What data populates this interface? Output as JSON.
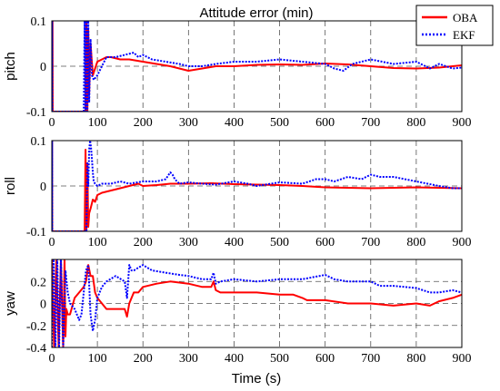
{
  "chart_data": [
    {
      "type": "line",
      "title": "Attitude error (min)",
      "ylabel": "pitch",
      "xlabel": "",
      "xlim": [
        0,
        900
      ],
      "ylim": [
        -0.1,
        0.1
      ],
      "x_ticks": [
        "0",
        "100",
        "200",
        "300",
        "400",
        "500",
        "600",
        "700",
        "800",
        "900"
      ],
      "y_ticks": [
        "-0.1",
        "0",
        "0.1"
      ],
      "y_tick_values": [
        -0.1,
        0,
        0.1
      ],
      "grid": "dashed",
      "legend": "top-right",
      "series": [
        {
          "name": "OBA",
          "color": "#ff0000",
          "x": [
            0,
            0.5,
            1,
            1.5,
            2,
            74,
            76,
            78,
            80,
            82,
            85,
            90,
            100,
            110,
            120,
            130,
            150,
            170,
            200,
            230,
            260,
            280,
            300,
            330,
            360,
            400,
            450,
            500,
            550,
            600,
            650,
            700,
            750,
            800,
            850,
            900
          ],
          "y": [
            -0.1,
            0.1,
            -0.1,
            0.1,
            -0.1,
            -0.1,
            0.1,
            -0.1,
            0.08,
            -0.06,
            0.05,
            -0.02,
            0.01,
            0.015,
            0.02,
            0.02,
            0.015,
            0.015,
            0.01,
            0.005,
            0.0,
            -0.005,
            -0.01,
            -0.005,
            0.0,
            0.0,
            0.003,
            0.004,
            0.003,
            0.006,
            0.004,
            0.0,
            -0.004,
            -0.005,
            -0.003,
            0.002
          ]
        },
        {
          "name": "EKF",
          "color": "#0000ff",
          "x": [
            0,
            0.5,
            1,
            70,
            72,
            74,
            76,
            78,
            80,
            82,
            85,
            88,
            92,
            100,
            110,
            120,
            140,
            160,
            180,
            190,
            200,
            220,
            250,
            280,
            300,
            330,
            360,
            400,
            450,
            500,
            550,
            600,
            620,
            640,
            660,
            700,
            750,
            800,
            830,
            850,
            880,
            900
          ],
          "y": [
            -0.1,
            0.1,
            -0.1,
            -0.1,
            0.1,
            -0.1,
            0.1,
            -0.1,
            0.1,
            -0.08,
            0.06,
            -0.02,
            -0.03,
            -0.02,
            0.0,
            0.02,
            0.02,
            0.025,
            0.03,
            0.02,
            0.025,
            0.015,
            0.01,
            0.005,
            0.0,
            0.0,
            0.005,
            0.01,
            0.01,
            0.015,
            0.01,
            0.005,
            -0.005,
            -0.01,
            0.005,
            0.015,
            0.005,
            0.01,
            -0.005,
            0.005,
            -0.005,
            -0.003
          ]
        }
      ]
    },
    {
      "type": "line",
      "title": "",
      "ylabel": "roll",
      "xlabel": "",
      "xlim": [
        0,
        900
      ],
      "ylim": [
        -0.1,
        0.1
      ],
      "x_ticks": [
        "0",
        "100",
        "200",
        "300",
        "400",
        "500",
        "600",
        "700",
        "800",
        "900"
      ],
      "y_ticks": [
        "-0.1",
        "0",
        "0.1"
      ],
      "y_tick_values": [
        -0.1,
        0,
        0.1
      ],
      "grid": "dashed",
      "series": [
        {
          "name": "OBA",
          "color": "#ff0000",
          "x": [
            0,
            0.5,
            1,
            72,
            74,
            76,
            78,
            80,
            82,
            85,
            90,
            95,
            100,
            110,
            130,
            150,
            170,
            190,
            200,
            230,
            260,
            300,
            350,
            400,
            450,
            500,
            550,
            600,
            650,
            700,
            750,
            800,
            850,
            900
          ],
          "y": [
            -0.1,
            0.1,
            -0.1,
            -0.1,
            0.08,
            -0.1,
            0.05,
            -0.09,
            -0.06,
            -0.05,
            -0.03,
            -0.035,
            -0.02,
            -0.015,
            -0.01,
            -0.005,
            0.0,
            0.005,
            0.0,
            0.002,
            0.005,
            0.005,
            0.006,
            0.004,
            0.003,
            0.002,
            0.0,
            -0.003,
            -0.004,
            -0.005,
            -0.004,
            -0.003,
            -0.004,
            -0.005
          ]
        },
        {
          "name": "EKF",
          "color": "#0000ff",
          "x": [
            0,
            0.5,
            1,
            76,
            78,
            80,
            82,
            84,
            86,
            88,
            90,
            92,
            95,
            100,
            110,
            130,
            150,
            170,
            200,
            230,
            250,
            260,
            265,
            270,
            280,
            300,
            330,
            360,
            400,
            430,
            450,
            500,
            550,
            580,
            600,
            620,
            650,
            680,
            700,
            720,
            750,
            800,
            850,
            880,
            900
          ],
          "y": [
            -0.1,
            0.1,
            -0.1,
            -0.1,
            0.05,
            0.0,
            0.08,
            0.1,
            0.085,
            0.06,
            0.03,
            0.01,
            0.005,
            0.0,
            0.005,
            0.005,
            0.01,
            0.005,
            0.01,
            0.01,
            0.015,
            0.03,
            0.025,
            0.015,
            0.005,
            0.008,
            0.005,
            0.003,
            0.01,
            0.005,
            0.0,
            0.008,
            0.005,
            0.015,
            0.015,
            0.01,
            0.02,
            0.015,
            0.025,
            0.02,
            0.02,
            0.01,
            0.0,
            -0.005,
            -0.005
          ]
        }
      ]
    },
    {
      "type": "line",
      "title": "",
      "ylabel": "yaw",
      "xlabel": "Time (s)",
      "xlim": [
        0,
        900
      ],
      "ylim": [
        -0.4,
        0.4
      ],
      "x_ticks": [
        "0",
        "100",
        "200",
        "300",
        "400",
        "500",
        "600",
        "700",
        "800",
        "900"
      ],
      "y_ticks": [
        "-0.4",
        "-0.2",
        "0",
        "0.2"
      ],
      "y_tick_values": [
        -0.4,
        -0.2,
        0,
        0.2
      ],
      "grid": "dashed",
      "series": [
        {
          "name": "OBA",
          "color": "#ff0000",
          "x": [
            0,
            5,
            10,
            15,
            20,
            25,
            28,
            30,
            32,
            35,
            40,
            50,
            60,
            70,
            75,
            80,
            85,
            90,
            95,
            100,
            110,
            120,
            140,
            160,
            165,
            170,
            175,
            180,
            190,
            200,
            230,
            260,
            300,
            330,
            350,
            355,
            360,
            370,
            400,
            450,
            500,
            530,
            550,
            560,
            600,
            650,
            700,
            750,
            800,
            830,
            850,
            880,
            900
          ],
          "y": [
            0.4,
            -0.4,
            0.4,
            -0.4,
            0.4,
            -0.4,
            0.4,
            -0.3,
            -0.05,
            -0.1,
            -0.1,
            0.05,
            0.1,
            0.15,
            0.2,
            0.35,
            0.25,
            0.25,
            0.1,
            0.05,
            0.0,
            -0.05,
            -0.05,
            -0.05,
            -0.12,
            0.0,
            0.05,
            0.1,
            0.1,
            0.15,
            0.18,
            0.2,
            0.18,
            0.15,
            0.15,
            0.2,
            0.12,
            0.1,
            0.1,
            0.1,
            0.08,
            0.08,
            0.05,
            0.03,
            0.03,
            0.0,
            0.0,
            -0.02,
            0.0,
            -0.02,
            0.02,
            0.05,
            0.08
          ]
        },
        {
          "name": "EKF",
          "color": "#0000ff",
          "x": [
            0,
            4,
            8,
            12,
            16,
            20,
            25,
            30,
            35,
            40,
            50,
            60,
            65,
            70,
            75,
            80,
            85,
            90,
            95,
            100,
            110,
            120,
            140,
            160,
            165,
            170,
            175,
            180,
            200,
            220,
            250,
            280,
            300,
            330,
            350,
            355,
            360,
            370,
            400,
            450,
            500,
            550,
            600,
            620,
            650,
            700,
            720,
            750,
            800,
            830,
            850,
            880,
            900
          ],
          "y": [
            -0.4,
            0.4,
            -0.4,
            0.4,
            -0.4,
            0.4,
            -0.4,
            0.3,
            0.1,
            0.0,
            -0.05,
            -0.15,
            -0.1,
            0.1,
            0.3,
            0.35,
            -0.1,
            -0.25,
            -0.15,
            0.05,
            0.15,
            0.2,
            0.25,
            0.2,
            0.05,
            0.35,
            0.3,
            0.3,
            0.35,
            0.3,
            0.28,
            0.26,
            0.25,
            0.22,
            0.22,
            0.28,
            0.18,
            0.2,
            0.22,
            0.2,
            0.22,
            0.22,
            0.26,
            0.22,
            0.2,
            0.2,
            0.16,
            0.16,
            0.14,
            0.1,
            0.1,
            0.12,
            0.1
          ]
        }
      ]
    }
  ]
}
